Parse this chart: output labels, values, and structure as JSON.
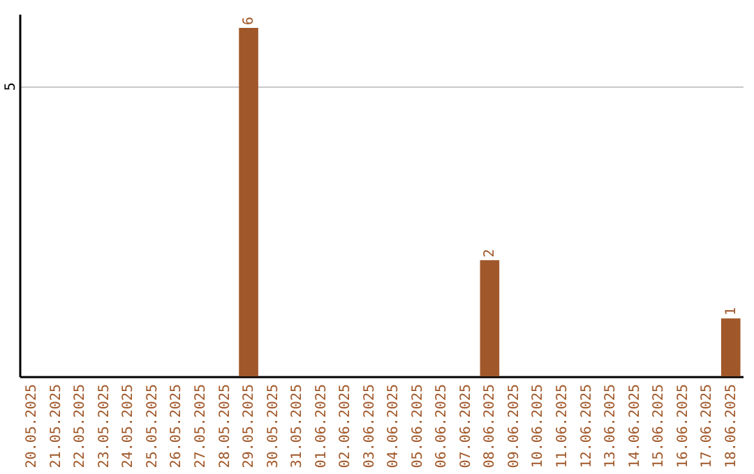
{
  "chart_data": {
    "type": "bar",
    "categories": [
      "20.05.2025",
      "21.05.2025",
      "22.05.2025",
      "23.05.2025",
      "24.05.2025",
      "25.05.2025",
      "26.05.2025",
      "27.05.2025",
      "28.05.2025",
      "29.05.2025",
      "30.05.2025",
      "31.05.2025",
      "01.06.2025",
      "02.06.2025",
      "03.06.2025",
      "04.06.2025",
      "05.06.2025",
      "06.06.2025",
      "07.06.2025",
      "08.06.2025",
      "09.06.2025",
      "10.06.2025",
      "11.06.2025",
      "12.06.2025",
      "13.06.2025",
      "14.06.2025",
      "15.06.2025",
      "16.06.2025",
      "17.06.2025",
      "18.06.2025"
    ],
    "values": [
      0,
      0,
      0,
      0,
      0,
      0,
      0,
      0,
      0,
      6,
      0,
      0,
      0,
      0,
      0,
      0,
      0,
      0,
      0,
      2,
      0,
      0,
      0,
      0,
      0,
      0,
      0,
      0,
      0,
      1
    ],
    "value_labels": [
      null,
      null,
      null,
      null,
      null,
      null,
      null,
      null,
      null,
      "6",
      null,
      null,
      null,
      null,
      null,
      null,
      null,
      null,
      null,
      "2",
      null,
      null,
      null,
      null,
      null,
      null,
      null,
      null,
      null,
      "1"
    ],
    "color": "#a0582a",
    "ylim": [
      0,
      6.24
    ],
    "yticks": [
      5
    ],
    "grid": "y"
  }
}
